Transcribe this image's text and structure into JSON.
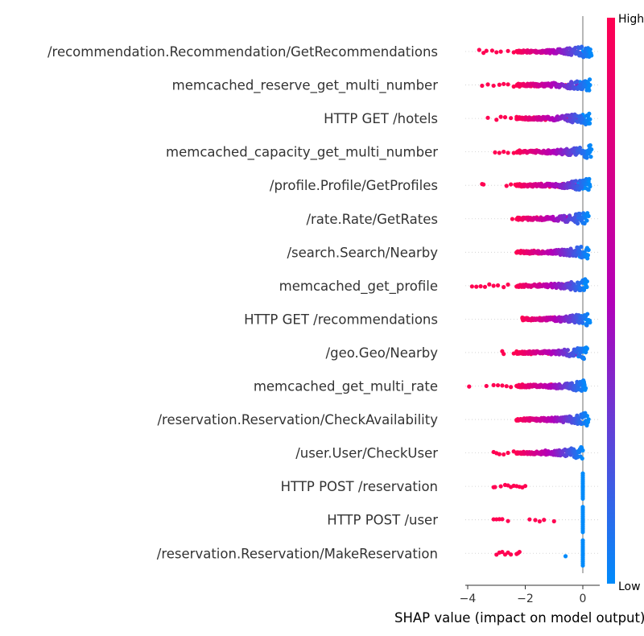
{
  "chart_data": {
    "type": "scatter",
    "subtype": "shap-beeswarm",
    "xlabel": "SHAP value (impact on model output)",
    "xlim": [
      -4.1,
      0.45
    ],
    "xticks": [
      -4,
      -2,
      0
    ],
    "xtick_labels": [
      "−4",
      "−2",
      "0"
    ],
    "zero_line": true,
    "grid": false,
    "colorbar": {
      "high_label": "High",
      "low_label": "Low",
      "low_color": "#008bfb",
      "high_color": "#ff0051",
      "mid_color": "#b300b8"
    },
    "features": [
      {
        "name": "/recommendation.Recommendation/GetRecommendations",
        "high_values": [
          -3.6,
          -3.45,
          -3.35,
          -3.15,
          -3.0,
          -2.85,
          -2.6,
          -2.4,
          -2.2,
          -2.0,
          -1.8,
          -1.6,
          -1.4,
          -1.2,
          -1.0,
          -0.8,
          -0.6,
          -0.4,
          -0.3
        ],
        "mid_values": [
          -0.25,
          -0.15,
          -0.1
        ],
        "low_values": [
          -0.05,
          0.0,
          0.05,
          0.1,
          0.15,
          0.2,
          0.25,
          0.3
        ]
      },
      {
        "name": "memcached_reserve_get_multi_number",
        "high_values": [
          -3.5,
          -3.3,
          -3.1,
          -2.9,
          -2.75,
          -2.6,
          -2.4,
          -2.2,
          -2.0,
          -1.8,
          -1.6,
          -1.4,
          -1.2,
          -1.0,
          -0.8,
          -0.6
        ],
        "mid_values": [
          -0.4,
          -0.3,
          -0.2
        ],
        "low_values": [
          -0.1,
          0.0,
          0.05,
          0.1,
          0.15,
          0.2,
          0.25
        ]
      },
      {
        "name": "HTTP GET /hotels",
        "high_values": [
          -3.3,
          -3.0,
          -2.85,
          -2.7,
          -2.5,
          -2.3,
          -2.1,
          -1.9,
          -1.7,
          -1.5,
          -1.3,
          -1.1,
          -0.9,
          -0.7,
          -0.5
        ],
        "mid_values": [
          -0.35,
          -0.25,
          -0.15
        ],
        "low_values": [
          -0.05,
          0.0,
          0.05,
          0.1,
          0.15,
          0.2,
          0.25
        ]
      },
      {
        "name": "memcached_capacity_get_multi_number",
        "high_values": [
          -3.05,
          -2.9,
          -2.75,
          -2.6,
          -2.4,
          -2.2,
          -2.0,
          -1.8,
          -1.6,
          -1.4,
          -1.2,
          -1.0,
          -0.8,
          -0.6
        ],
        "mid_values": [
          -0.4,
          -0.3,
          -0.2
        ],
        "low_values": [
          -0.1,
          0.0,
          0.05,
          0.1,
          0.15,
          0.2,
          0.25,
          0.3
        ]
      },
      {
        "name": "/profile.Profile/GetProfiles",
        "high_values": [
          -3.5,
          -3.45,
          -2.65,
          -2.5,
          -2.35,
          -2.2,
          -2.05,
          -1.9,
          -1.75,
          -1.6,
          -1.45,
          -1.3,
          -1.15,
          -1.0,
          -0.85,
          -0.7,
          -0.55
        ],
        "mid_values": [
          -0.45,
          -0.35,
          -0.25
        ],
        "low_values": [
          -0.15,
          -0.05,
          0.0,
          0.05,
          0.1,
          0.15,
          0.2,
          0.25
        ]
      },
      {
        "name": "/rate.Rate/GetRates",
        "high_values": [
          -2.45,
          -2.2,
          -2.05,
          -1.9,
          -1.75,
          -1.6,
          -1.45,
          -1.3,
          -1.15,
          -1.0,
          -0.85
        ],
        "mid_values": [
          -0.7,
          -0.55,
          -0.4,
          -0.3
        ],
        "low_values": [
          -0.2,
          -0.1,
          0.0,
          0.05,
          0.1,
          0.15,
          0.2
        ]
      },
      {
        "name": "/search.Search/Nearby",
        "high_values": [
          -2.3,
          -2.15,
          -2.0,
          -1.85,
          -1.7,
          -1.55,
          -1.4,
          -1.25,
          -1.1,
          -0.95,
          -0.8,
          -0.65
        ],
        "mid_values": [
          -0.5,
          -0.4,
          -0.3
        ],
        "low_values": [
          -0.2,
          -0.1,
          0.0,
          0.05,
          0.1,
          0.15,
          0.2
        ]
      },
      {
        "name": "memcached_get_profile",
        "high_values": [
          -3.85,
          -3.7,
          -3.55,
          -3.4,
          -3.25,
          -3.1,
          -2.95,
          -2.75,
          -2.6,
          -2.3,
          -2.1,
          -1.9,
          -1.7,
          -1.5,
          -1.3,
          -1.1,
          -0.9,
          -0.7
        ],
        "mid_values": [
          -0.5,
          -0.4,
          -0.3,
          -0.2
        ],
        "low_values": [
          -0.1,
          0.0,
          0.05,
          0.1,
          0.15
        ]
      },
      {
        "name": "HTTP GET /recommendations",
        "high_values": [
          -2.1,
          -1.95,
          -1.8,
          -1.65,
          -1.5,
          -1.35,
          -1.2,
          -1.05,
          -0.9,
          -0.75,
          -0.6
        ],
        "mid_values": [
          -0.45,
          -0.35,
          -0.25,
          -0.15
        ],
        "low_values": [
          -0.05,
          0.0,
          0.05,
          0.1,
          0.15,
          0.2,
          0.25
        ]
      },
      {
        "name": "/geo.Geo/Nearby",
        "high_values": [
          -2.8,
          -2.75,
          -2.4,
          -2.1,
          -2.0,
          -1.8,
          -1.6,
          -1.4,
          -1.2,
          -1.0,
          -0.8,
          -0.6
        ],
        "mid_values": [
          -0.45,
          -0.35,
          -0.25
        ],
        "low_values": [
          -0.15,
          -0.05,
          0.0,
          0.05,
          0.1,
          0.15
        ]
      },
      {
        "name": "memcached_get_multi_rate",
        "high_values": [
          -3.95,
          -3.35,
          -3.1,
          -2.95,
          -2.8,
          -2.65,
          -2.5,
          -2.3,
          -2.1,
          -1.9,
          -1.7,
          -1.5,
          -1.3,
          -1.1,
          -0.9,
          -0.7
        ],
        "mid_values": [
          -0.5,
          -0.35,
          -0.25
        ],
        "low_values": [
          -0.15,
          -0.05,
          0.0,
          0.05,
          0.1
        ]
      },
      {
        "name": "/reservation.Reservation/CheckAvailability",
        "high_values": [
          -2.3,
          -2.0,
          -1.85,
          -1.55,
          -1.45,
          -1.35,
          -1.2,
          -1.05,
          -0.9,
          -0.75,
          -0.6
        ],
        "mid_values": [
          -0.45,
          -0.35,
          -0.25,
          -0.15
        ],
        "low_values": [
          -0.05,
          0.0,
          0.05,
          0.1,
          0.15,
          0.2
        ]
      },
      {
        "name": "/user.User/CheckUser",
        "high_values": [
          -3.1,
          -3.0,
          -2.9,
          -2.75,
          -2.6,
          -2.4,
          -2.2,
          -1.9,
          -1.8,
          -1.7,
          -1.6
        ],
        "mid_values": [
          -1.45,
          -1.3,
          -1.2,
          -0.9
        ],
        "low_values": [
          -0.5,
          -0.3,
          -0.2,
          0.0
        ]
      },
      {
        "name": "HTTP POST /reservation",
        "high_values": [
          -3.1,
          -3.05,
          -2.85,
          -2.7,
          -2.6,
          -2.5,
          -2.4,
          -2.3,
          -2.2,
          -2.1,
          -2.0
        ],
        "mid_values": [],
        "low_values": [
          0.0
        ]
      },
      {
        "name": "HTTP POST /user",
        "high_values": [
          -3.1,
          -3.0,
          -2.9,
          -2.8,
          -2.6,
          -1.85,
          -1.65,
          -1.5,
          -1.35,
          -1.0
        ],
        "mid_values": [],
        "low_values": [
          0.0
        ]
      },
      {
        "name": "/reservation.Reservation/MakeReservation",
        "high_values": [
          -3.0,
          -2.9,
          -2.8,
          -2.7,
          -2.6,
          -2.5,
          -2.3,
          -2.25,
          -2.2
        ],
        "mid_values": [],
        "low_values": [
          -0.6,
          0.0
        ]
      }
    ]
  }
}
